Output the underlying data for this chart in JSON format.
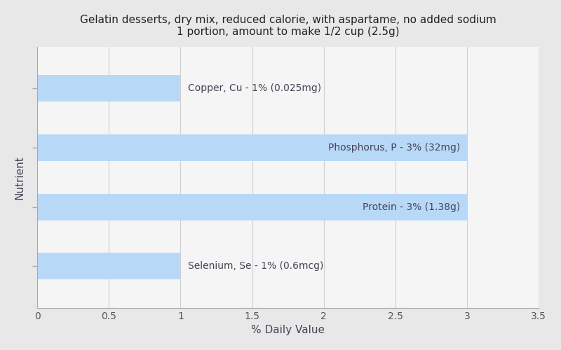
{
  "title_line1": "Gelatin desserts, dry mix, reduced calorie, with aspartame, no added sodium",
  "title_line2": "1 portion, amount to make 1/2 cup (2.5g)",
  "nutrients": [
    "Selenium, Se - 1% (0.6mcg)",
    "Protein - 3% (1.38g)",
    "Phosphorus, P - 3% (32mg)",
    "Copper, Cu - 1% (0.025mg)"
  ],
  "values": [
    1,
    3,
    3,
    1
  ],
  "label_inside": [
    false,
    true,
    true,
    false
  ],
  "bar_color": "#b8d8f8",
  "xlabel": "% Daily Value",
  "ylabel": "Nutrient",
  "xlim": [
    0,
    3.5
  ],
  "xticks": [
    0,
    0.5,
    1,
    1.5,
    2,
    2.5,
    3,
    3.5
  ],
  "background_color": "#e8e8e8",
  "plot_bg_color": "#f5f5f5",
  "label_color": "#444455",
  "title_color": "#222222",
  "label_fontsize": 10,
  "title_fontsize": 11,
  "axis_label_fontsize": 11,
  "bar_height": 0.45
}
